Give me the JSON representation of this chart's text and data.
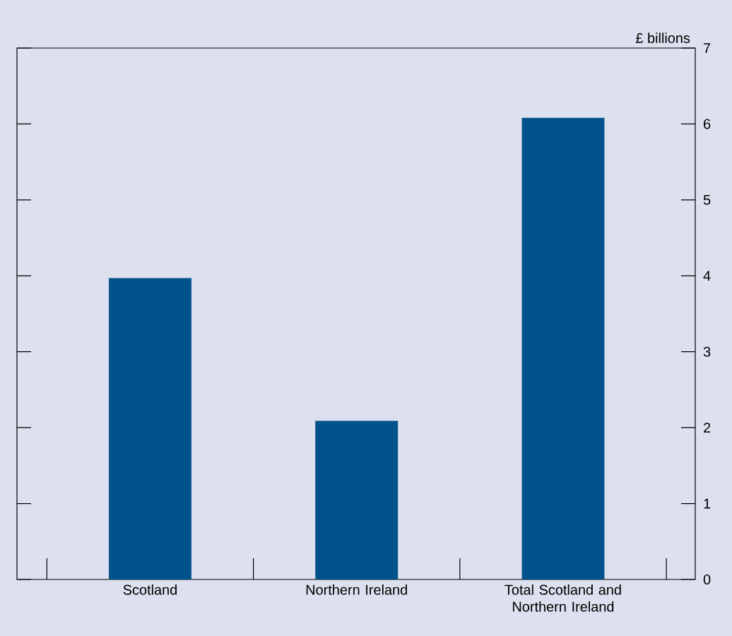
{
  "chart_data": {
    "type": "bar",
    "ylabel": "£ billions",
    "categories": [
      "Scotland",
      "Northern Ireland",
      "Total Scotland and Northern Ireland"
    ],
    "values": [
      3.97,
      2.09,
      6.08
    ],
    "color": "#00528a",
    "ylim": [
      0,
      7
    ],
    "yticks": [
      0,
      1,
      2,
      3,
      4,
      5,
      6,
      7
    ],
    "grid": false
  }
}
